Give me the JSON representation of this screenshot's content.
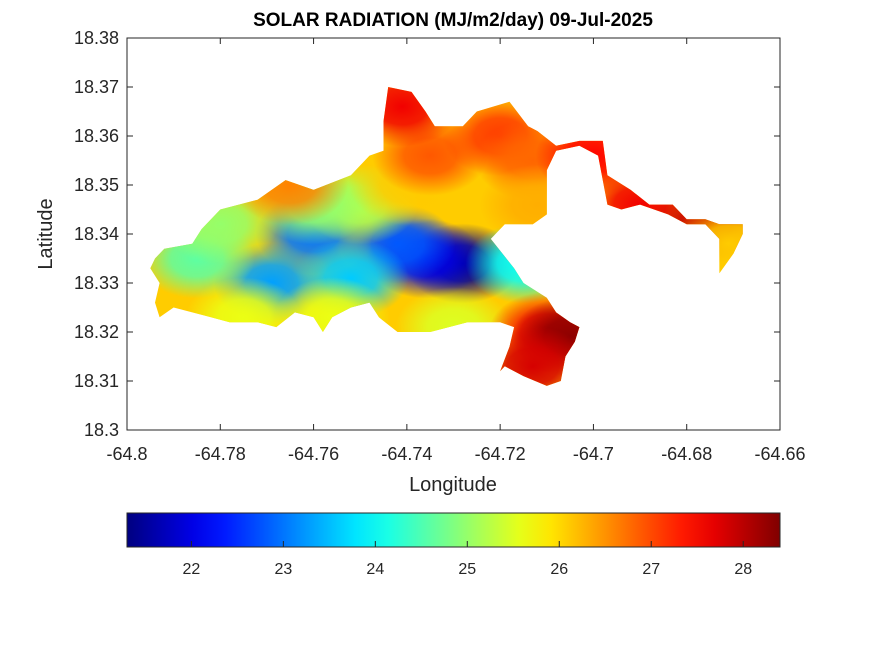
{
  "chart_data": {
    "type": "heatmap",
    "title": "SOLAR RADIATION (MJ/m2/day) 09-Jul-2025",
    "xlabel": "Longitude",
    "ylabel": "Latitude",
    "xlim": [
      -64.8,
      -64.66
    ],
    "ylim": [
      18.3,
      18.38
    ],
    "x_ticks": [
      "-64.8",
      "-64.78",
      "-64.76",
      "-64.74",
      "-64.72",
      "-64.7",
      "-64.68",
      "-64.66"
    ],
    "y_ticks": [
      "18.3",
      "18.31",
      "18.32",
      "18.33",
      "18.34",
      "18.35",
      "18.36",
      "18.37",
      "18.38"
    ],
    "colorbar": {
      "location": "bottom",
      "colormap": "jet",
      "range": [
        21.3,
        28.4
      ],
      "ticks": [
        "22",
        "23",
        "24",
        "25",
        "26",
        "27",
        "28"
      ]
    },
    "region_boundary": [
      [
        -64.792,
        18.337
      ],
      [
        -64.786,
        18.338
      ],
      [
        -64.784,
        18.341
      ],
      [
        -64.78,
        18.345
      ],
      [
        -64.772,
        18.347
      ],
      [
        -64.766,
        18.351
      ],
      [
        -64.76,
        18.349
      ],
      [
        -64.752,
        18.352
      ],
      [
        -64.748,
        18.356
      ],
      [
        -64.745,
        18.357
      ],
      [
        -64.745,
        18.363
      ],
      [
        -64.744,
        18.37
      ],
      [
        -64.739,
        18.369
      ],
      [
        -64.736,
        18.365
      ],
      [
        -64.734,
        18.362
      ],
      [
        -64.728,
        18.362
      ],
      [
        -64.725,
        18.365
      ],
      [
        -64.718,
        18.367
      ],
      [
        -64.714,
        18.362
      ],
      [
        -64.712,
        18.361
      ],
      [
        -64.708,
        18.358
      ],
      [
        -64.703,
        18.359
      ],
      [
        -64.698,
        18.359
      ],
      [
        -64.697,
        18.352
      ],
      [
        -64.692,
        18.349
      ],
      [
        -64.688,
        18.346
      ],
      [
        -64.683,
        18.346
      ],
      [
        -64.68,
        18.343
      ],
      [
        -64.676,
        18.343
      ],
      [
        -64.673,
        18.342
      ],
      [
        -64.668,
        18.342
      ],
      [
        -64.668,
        18.34
      ],
      [
        -64.67,
        18.336
      ],
      [
        -64.673,
        18.332
      ],
      [
        -64.673,
        18.339
      ],
      [
        -64.676,
        18.342
      ],
      [
        -64.68,
        18.342
      ],
      [
        -64.684,
        18.344
      ],
      [
        -64.69,
        18.346
      ],
      [
        -64.694,
        18.345
      ],
      [
        -64.697,
        18.346
      ],
      [
        -64.699,
        18.356
      ],
      [
        -64.703,
        18.358
      ],
      [
        -64.708,
        18.357
      ],
      [
        -64.71,
        18.353
      ],
      [
        -64.71,
        18.344
      ],
      [
        -64.713,
        18.342
      ],
      [
        -64.719,
        18.342
      ],
      [
        -64.722,
        18.339
      ],
      [
        -64.717,
        18.333
      ],
      [
        -64.715,
        18.33
      ],
      [
        -64.71,
        18.327
      ],
      [
        -64.708,
        18.324
      ],
      [
        -64.705,
        18.322
      ],
      [
        -64.703,
        18.321
      ],
      [
        -64.704,
        18.318
      ],
      [
        -64.706,
        18.315
      ],
      [
        -64.707,
        18.31
      ],
      [
        -64.71,
        18.309
      ],
      [
        -64.715,
        18.311
      ],
      [
        -64.719,
        18.313
      ],
      [
        -64.72,
        18.312
      ],
      [
        -64.718,
        18.317
      ],
      [
        -64.717,
        18.321
      ],
      [
        -64.72,
        18.322
      ],
      [
        -64.727,
        18.322
      ],
      [
        -64.735,
        18.32
      ],
      [
        -64.742,
        18.32
      ],
      [
        -64.746,
        18.323
      ],
      [
        -64.748,
        18.326
      ],
      [
        -64.752,
        18.325
      ],
      [
        -64.756,
        18.323
      ],
      [
        -64.758,
        18.32
      ],
      [
        -64.76,
        18.323
      ],
      [
        -64.764,
        18.324
      ],
      [
        -64.768,
        18.321
      ],
      [
        -64.772,
        18.322
      ],
      [
        -64.778,
        18.322
      ],
      [
        -64.782,
        18.323
      ],
      [
        -64.786,
        18.324
      ],
      [
        -64.79,
        18.325
      ],
      [
        -64.793,
        18.323
      ],
      [
        -64.794,
        18.326
      ],
      [
        -64.793,
        18.33
      ],
      [
        -64.795,
        18.333
      ],
      [
        -64.794,
        18.335
      ]
    ],
    "field_points": [
      {
        "lon": -64.728,
        "lat": 18.334,
        "value": 21.4
      },
      {
        "lon": -64.736,
        "lat": 18.335,
        "value": 22.0
      },
      {
        "lon": -64.742,
        "lat": 18.338,
        "value": 22.8
      },
      {
        "lon": -64.76,
        "lat": 18.34,
        "value": 23.0
      },
      {
        "lon": -64.769,
        "lat": 18.33,
        "value": 23.3
      },
      {
        "lon": -64.752,
        "lat": 18.331,
        "value": 23.6
      },
      {
        "lon": -64.715,
        "lat": 18.334,
        "value": 24.0
      },
      {
        "lon": -64.785,
        "lat": 18.335,
        "value": 24.6
      },
      {
        "lon": -64.78,
        "lat": 18.342,
        "value": 25.0
      },
      {
        "lon": -64.75,
        "lat": 18.346,
        "value": 25.2
      },
      {
        "lon": -64.76,
        "lat": 18.346,
        "value": 25.0
      },
      {
        "lon": -64.775,
        "lat": 18.323,
        "value": 25.6
      },
      {
        "lon": -64.756,
        "lat": 18.323,
        "value": 25.6
      },
      {
        "lon": -64.73,
        "lat": 18.321,
        "value": 25.5
      },
      {
        "lon": -64.74,
        "lat": 18.35,
        "value": 26.1
      },
      {
        "lon": -64.765,
        "lat": 18.35,
        "value": 26.6
      },
      {
        "lon": -64.735,
        "lat": 18.356,
        "value": 26.9
      },
      {
        "lon": -64.72,
        "lat": 18.36,
        "value": 27.1
      },
      {
        "lon": -64.713,
        "lat": 18.355,
        "value": 26.8
      },
      {
        "lon": -64.712,
        "lat": 18.346,
        "value": 26.3
      },
      {
        "lon": -64.741,
        "lat": 18.366,
        "value": 27.6
      },
      {
        "lon": -64.7,
        "lat": 18.356,
        "value": 27.5
      },
      {
        "lon": -64.69,
        "lat": 18.346,
        "value": 27.6
      },
      {
        "lon": -64.676,
        "lat": 18.342,
        "value": 27.9
      },
      {
        "lon": -64.671,
        "lat": 18.338,
        "value": 26.1
      },
      {
        "lon": -64.71,
        "lat": 18.32,
        "value": 27.6
      },
      {
        "lon": -64.705,
        "lat": 18.319,
        "value": 28.3
      },
      {
        "lon": -64.713,
        "lat": 18.313,
        "value": 27.8
      }
    ]
  }
}
